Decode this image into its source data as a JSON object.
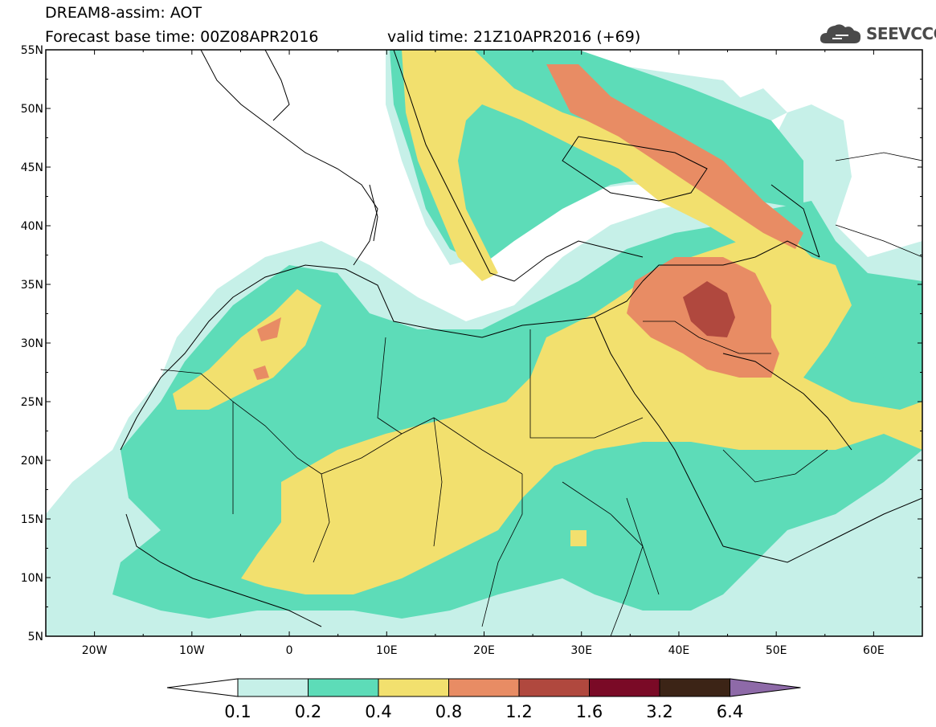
{
  "header": {
    "title_line1": "DREAM8-assim: AOT",
    "title_line2": "Forecast base time: 00Z08APR2016",
    "valid_time": "valid time: 21Z10APR2016 (+69)",
    "logo_text": "SEEVCCC",
    "logo_icon": "cloud-icon"
  },
  "map": {
    "lat_ticks": [
      "55N",
      "50N",
      "45N",
      "40N",
      "35N",
      "30N",
      "25N",
      "20N",
      "15N",
      "10N",
      "5N"
    ],
    "lon_ticks": [
      "20W",
      "10W",
      "0",
      "10E",
      "20E",
      "30E",
      "40E",
      "50E",
      "60E"
    ],
    "lat_range": [
      5,
      55
    ],
    "lon_range": [
      -25,
      65
    ]
  },
  "colorbar": {
    "labels": [
      "0.1",
      "0.2",
      "0.4",
      "0.8",
      "1.2",
      "1.6",
      "3.2",
      "6.4"
    ],
    "colors": [
      "#ffffff",
      "#c6f0e8",
      "#5ddcb8",
      "#f2e06e",
      "#e88c64",
      "#b0483e",
      "#7a0a26",
      "#3c2416",
      "#8e6aa8"
    ]
  }
}
